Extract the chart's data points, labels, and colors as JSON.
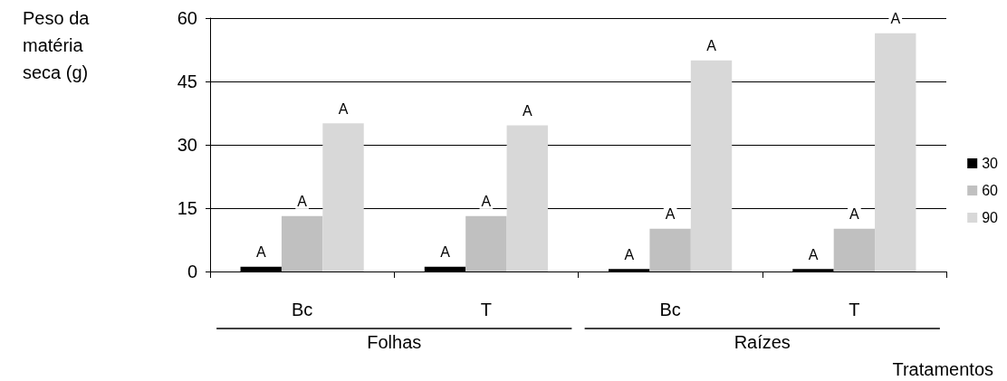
{
  "chart_data": {
    "type": "bar",
    "ylabel": "Peso da matéria seca (g)",
    "xlabel": "Tratamentos",
    "categories": [
      "Bc",
      "T",
      "Bc",
      "T"
    ],
    "annotations": [
      "Folhas",
      "Raízes"
    ],
    "series": [
      {
        "name": "30",
        "color": "#000000",
        "values": [
          1.1,
          1.1,
          0.6,
          0.6
        ],
        "value_labels": [
          "A",
          "A",
          "A",
          "A"
        ]
      },
      {
        "name": "60",
        "color": "#c0c0c0",
        "values": [
          13.1,
          13.1,
          10.1,
          10.1
        ],
        "value_labels": [
          "A",
          "A",
          "A",
          "A"
        ]
      },
      {
        "name": "90",
        "color": "#d8d8d8",
        "values": [
          35.1,
          34.6,
          50,
          56.4
        ],
        "value_labels": [
          "A",
          "A",
          "A",
          "A"
        ]
      }
    ],
    "ylim": [
      0,
      60
    ],
    "yticks": [
      0,
      15,
      30,
      45,
      60
    ],
    "grid": "y",
    "legend": "right"
  }
}
